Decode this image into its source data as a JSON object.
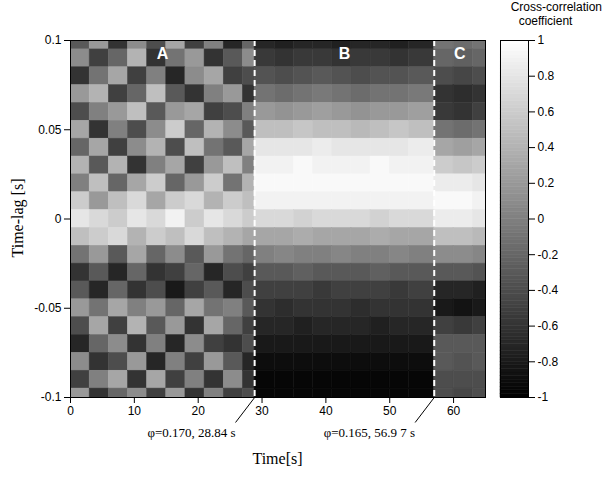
{
  "chart_data": {
    "type": "heatmap",
    "x_label": "Time[s]",
    "y_label": "Time-lag [s]",
    "xlim": [
      0,
      65
    ],
    "xticks": [
      0,
      10,
      20,
      30,
      40,
      50,
      60
    ],
    "ylim": [
      -0.1,
      0.1
    ],
    "yticks": [
      -0.1,
      -0.05,
      0,
      0.05,
      0.1
    ],
    "x_edges": [
      0,
      3,
      6,
      9,
      12,
      15,
      18,
      21,
      24,
      27,
      28.84,
      32,
      35,
      38,
      41,
      44,
      47,
      50,
      53,
      56.97,
      60,
      63,
      66
    ],
    "y": [
      0.1,
      0.09,
      0.08,
      0.07,
      0.06,
      0.05,
      0.04,
      0.03,
      0.02,
      0.01,
      0,
      -0.01,
      -0.02,
      -0.03,
      -0.04,
      -0.05,
      -0.06,
      -0.07,
      -0.08,
      -0.09,
      -0.1
    ],
    "values": [
      [
        -0.3,
        0.2,
        -0.6,
        0.1,
        -0.4,
        0.3,
        -0.5,
        0.0,
        -0.7,
        -0.2,
        -0.7,
        -0.75,
        -0.7,
        -0.7,
        -0.75,
        -0.7,
        -0.7,
        -0.75,
        -0.7,
        -0.1,
        -0.15,
        -0.1
      ],
      [
        0.1,
        -0.5,
        -0.2,
        0.4,
        -0.6,
        -0.1,
        0.2,
        -0.6,
        -0.3,
        0.1,
        -0.55,
        -0.6,
        -0.55,
        -0.55,
        -0.6,
        -0.55,
        -0.55,
        -0.6,
        -0.55,
        -0.2,
        -0.25,
        -0.2
      ],
      [
        -0.6,
        -0.1,
        0.3,
        -0.5,
        0.0,
        -0.7,
        0.1,
        0.3,
        -0.5,
        -0.4,
        -0.35,
        -0.4,
        -0.35,
        -0.3,
        -0.35,
        -0.4,
        -0.35,
        -0.35,
        -0.3,
        -0.4,
        -0.45,
        -0.4
      ],
      [
        0.2,
        0.4,
        -0.5,
        -0.2,
        0.5,
        -0.3,
        -0.6,
        0.0,
        0.2,
        -0.6,
        -0.1,
        -0.15,
        -0.1,
        -0.05,
        -0.1,
        -0.15,
        -0.1,
        -0.1,
        -0.05,
        -0.6,
        -0.65,
        -0.6
      ],
      [
        -0.4,
        0.0,
        0.2,
        0.5,
        -0.3,
        0.2,
        0.3,
        -0.5,
        -0.4,
        0.0,
        0.2,
        0.15,
        0.2,
        0.25,
        0.2,
        0.15,
        0.2,
        0.2,
        0.25,
        -0.55,
        -0.6,
        -0.5
      ],
      [
        0.3,
        -0.6,
        0.0,
        -0.4,
        0.1,
        0.6,
        -0.2,
        0.4,
        0.1,
        -0.3,
        0.5,
        0.5,
        0.55,
        0.5,
        0.5,
        0.45,
        0.5,
        0.55,
        0.5,
        -0.1,
        -0.15,
        -0.1
      ],
      [
        -0.2,
        0.3,
        -0.5,
        0.1,
        0.4,
        -0.4,
        0.5,
        -0.1,
        -0.3,
        0.3,
        0.8,
        0.8,
        0.8,
        0.85,
        0.8,
        0.8,
        0.8,
        0.8,
        0.85,
        0.3,
        0.25,
        0.3
      ],
      [
        0.4,
        -0.3,
        0.4,
        -0.6,
        0.0,
        0.3,
        -0.5,
        0.2,
        0.5,
        0.0,
        0.9,
        0.9,
        0.95,
        0.9,
        0.9,
        0.9,
        0.95,
        0.9,
        0.9,
        0.6,
        0.55,
        0.6
      ],
      [
        0.0,
        0.5,
        -0.2,
        0.3,
        0.6,
        -0.2,
        0.2,
        0.6,
        -0.1,
        0.4,
        0.95,
        0.95,
        0.95,
        0.95,
        0.95,
        0.95,
        0.95,
        0.95,
        0.95,
        0.85,
        0.85,
        0.8
      ],
      [
        0.6,
        0.2,
        0.5,
        0.7,
        0.3,
        0.6,
        0.7,
        0.4,
        0.6,
        0.5,
        0.9,
        0.9,
        0.9,
        0.9,
        0.9,
        0.9,
        0.9,
        0.9,
        0.9,
        0.95,
        0.95,
        0.9
      ],
      [
        0.8,
        0.7,
        0.6,
        0.8,
        0.7,
        0.9,
        0.6,
        0.8,
        0.7,
        0.6,
        0.7,
        0.7,
        0.65,
        0.7,
        0.7,
        0.7,
        0.65,
        0.7,
        0.7,
        0.85,
        0.85,
        0.8
      ],
      [
        0.5,
        0.6,
        0.7,
        0.4,
        0.6,
        0.5,
        0.7,
        0.5,
        0.4,
        0.3,
        0.3,
        0.3,
        0.35,
        0.3,
        0.3,
        0.3,
        0.35,
        0.3,
        0.3,
        0.5,
        0.5,
        0.45
      ],
      [
        -0.1,
        0.2,
        -0.3,
        0.3,
        -0.2,
        0.1,
        -0.3,
        0.2,
        -0.1,
        -0.2,
        0.0,
        0.05,
        0.0,
        0.0,
        0.05,
        0.0,
        0.0,
        0.05,
        0.0,
        0.1,
        0.1,
        0.05
      ],
      [
        -0.6,
        -0.3,
        -0.7,
        -0.2,
        -0.6,
        -0.5,
        -0.2,
        -0.7,
        -0.4,
        -0.5,
        -0.3,
        -0.3,
        -0.25,
        -0.3,
        -0.3,
        -0.3,
        -0.25,
        -0.3,
        -0.3,
        -0.3,
        -0.3,
        -0.35
      ],
      [
        -0.3,
        -0.7,
        -0.2,
        -0.6,
        -0.4,
        -0.8,
        -0.5,
        -0.3,
        -0.7,
        -0.4,
        -0.5,
        -0.5,
        -0.5,
        -0.55,
        -0.5,
        -0.5,
        -0.5,
        -0.55,
        -0.5,
        -0.7,
        -0.7,
        -0.75
      ],
      [
        0.2,
        -0.1,
        0.3,
        0.0,
        0.2,
        -0.2,
        0.3,
        -0.1,
        0.0,
        -0.3,
        -0.6,
        -0.65,
        -0.6,
        -0.6,
        -0.6,
        -0.65,
        -0.6,
        -0.6,
        -0.6,
        -0.8,
        -0.85,
        -0.8
      ],
      [
        -0.4,
        0.3,
        -0.5,
        0.4,
        -0.3,
        0.2,
        -0.6,
        0.3,
        -0.2,
        -0.5,
        -0.7,
        -0.7,
        -0.75,
        -0.7,
        -0.7,
        -0.7,
        -0.75,
        -0.7,
        -0.7,
        -0.5,
        -0.55,
        -0.5
      ],
      [
        -0.7,
        -0.2,
        0.1,
        -0.6,
        0.0,
        -0.7,
        0.1,
        -0.5,
        -0.6,
        -0.4,
        -0.8,
        -0.8,
        -0.8,
        -0.8,
        -0.8,
        -0.8,
        -0.8,
        -0.8,
        -0.8,
        -0.3,
        -0.3,
        -0.3
      ],
      [
        0.1,
        -0.6,
        -0.4,
        0.2,
        -0.7,
        0.0,
        -0.5,
        0.2,
        -0.3,
        -0.7,
        -0.9,
        -0.9,
        -0.9,
        -0.9,
        -0.9,
        -0.9,
        -0.9,
        -0.9,
        -0.9,
        -0.3,
        -0.35,
        -0.3
      ],
      [
        -0.5,
        0.0,
        0.3,
        -0.6,
        0.3,
        -0.5,
        0.0,
        -0.6,
        0.1,
        -0.6,
        -0.95,
        -0.95,
        -0.95,
        -0.95,
        -0.95,
        -0.95,
        -0.95,
        -0.95,
        -0.95,
        -0.4,
        -0.4,
        -0.4
      ],
      [
        0.2,
        -0.6,
        -0.2,
        0.1,
        -0.5,
        0.2,
        -0.6,
        0.0,
        -0.5,
        -0.4,
        -0.95,
        -0.95,
        -0.95,
        -0.95,
        -0.95,
        -0.95,
        -0.95,
        -0.95,
        -0.95,
        -0.4,
        -0.45,
        -0.4
      ]
    ],
    "regions": [
      "A",
      "B",
      "C"
    ],
    "boundaries": [
      {
        "time": 28.84,
        "label": "φ=0.170, 28.84 s",
        "color": "#ffffff",
        "line_style": "dashed"
      },
      {
        "time": 56.97,
        "label": "φ=0.165, 56.9 7 s",
        "color": "#ffffff",
        "line_style": "dashed"
      }
    ],
    "colorbar": {
      "label": "Cross-correlation coefficient",
      "range": [
        -1,
        1
      ],
      "ticks": [
        1,
        0.8,
        0.6,
        0.4,
        0.2,
        0,
        -0.2,
        -0.4,
        -0.6,
        -0.8,
        -1
      ]
    }
  }
}
